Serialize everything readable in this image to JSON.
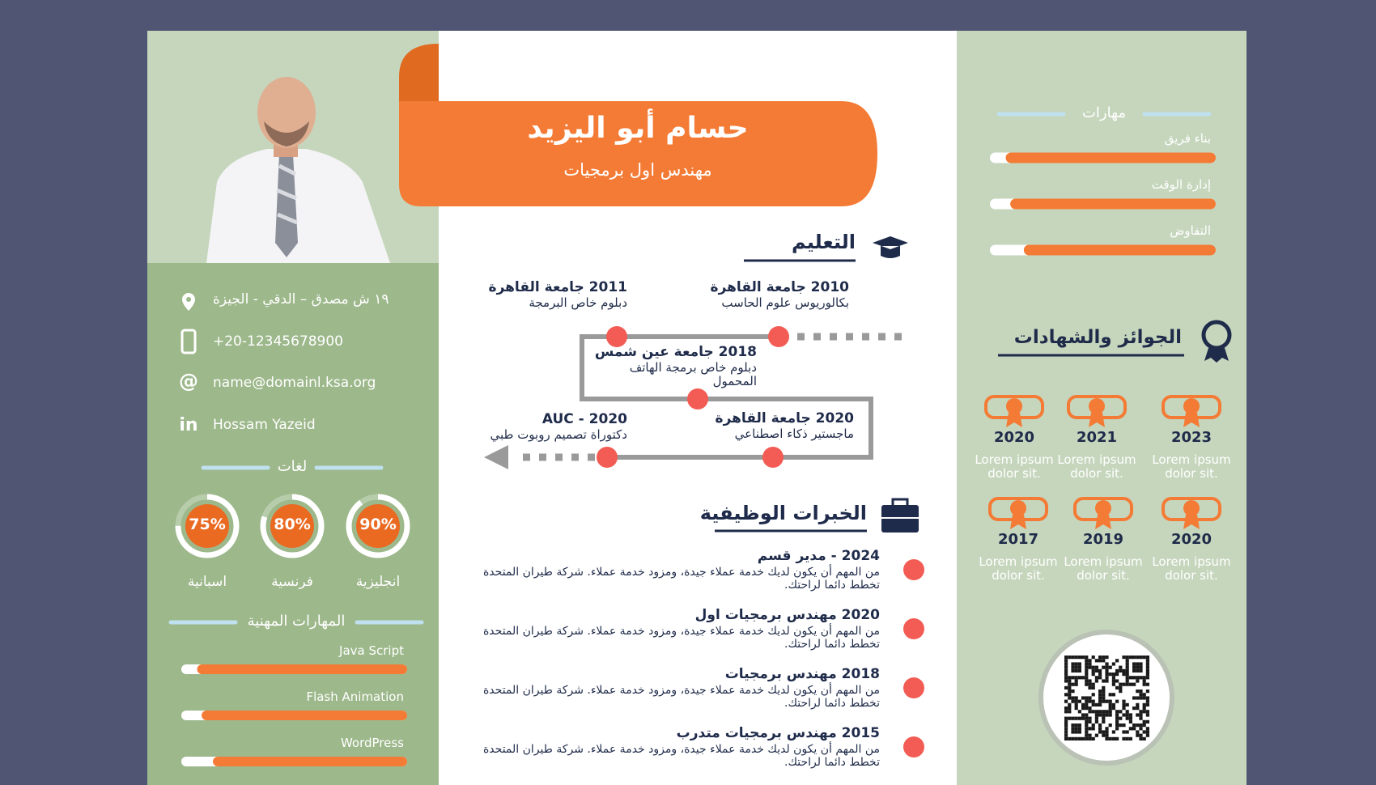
{
  "header": {
    "name": "حسام أبو اليزيد",
    "title": "مهندس اول برمجيات"
  },
  "contact": [
    "١٩ ش مصدق – الدقي - الجيزة",
    "+20-12345678900",
    "name@domainl.ksa.org",
    "Hossam Yazeid"
  ],
  "languages": {
    "heading": "لغات",
    "items": [
      {
        "name": "اسبانية",
        "value": 75,
        "value_label": "75%"
      },
      {
        "name": "فرنسية",
        "value": 80,
        "value_label": "80%"
      },
      {
        "name": "انجليزية",
        "value": 90,
        "value_label": "90%"
      }
    ]
  },
  "professional_skills": {
    "heading": "المهارات المهنية",
    "items": [
      {
        "name": "Java Script",
        "level": 93
      },
      {
        "name": "Flash Animation",
        "level": 91
      },
      {
        "name": "WordPress",
        "level": 86
      }
    ]
  },
  "education": {
    "heading": "التعليم",
    "entries": [
      {
        "title": "2010 جامعة القاهرة",
        "desc": "بكالوريوس علوم الحاسب"
      },
      {
        "title": "2011 جامعة القاهرة",
        "desc": "دبلوم خاص البرمجة"
      },
      {
        "title": "2018 جامعة عين شمس",
        "desc": "دبلوم خاص برمجة الهاتف المحمول"
      },
      {
        "title": "2020 جامعة القاهرة",
        "desc": "ماجستير ذكاء اصطناعي"
      },
      {
        "title": "2020 - AUC",
        "desc": "دكتوراة تصميم روبوت طبي"
      }
    ]
  },
  "experience": {
    "heading": "الخبرات الوظيفية",
    "items": [
      {
        "title": "2024 - مدير قسم",
        "desc": "من المهم أن يكون لديك خدمة عملاء جيدة، ومزود خدمة عملاء. شركة طيران المتحدة تخطط دائما لراحتك."
      },
      {
        "title": "2020 مهندس برمجيات اول",
        "desc": "من المهم أن يكون لديك خدمة عملاء جيدة، ومزود خدمة عملاء. شركة طيران المتحدة تخطط دائما لراحتك."
      },
      {
        "title": "2018 مهندس برمجيات",
        "desc": "من المهم أن يكون لديك خدمة عملاء جيدة، ومزود خدمة عملاء. شركة طيران المتحدة تخطط دائما لراحتك."
      },
      {
        "title": "2015 مهندس برمجيات متدرب",
        "desc": "من المهم أن يكون لديك خدمة عملاء جيدة، ومزود خدمة عملاء. شركة طيران المتحدة تخطط دائما لراحتك."
      }
    ]
  },
  "skills": {
    "heading": "مهارات",
    "items": [
      {
        "name": "بناء فريق",
        "level": 93
      },
      {
        "name": "إدارة الوقت",
        "level": 91
      },
      {
        "name": "التفاوض",
        "level": 85
      }
    ]
  },
  "awards": {
    "heading": "الجوائز والشهادات",
    "items": [
      {
        "year": "2020",
        "text": "Lorem ipsum dolor sit."
      },
      {
        "year": "2021",
        "text": "Lorem ipsum dolor sit."
      },
      {
        "year": "2023",
        "text": "Lorem ipsum dolor sit."
      },
      {
        "year": "2017",
        "text": "Lorem ipsum dolor sit."
      },
      {
        "year": "2019",
        "text": "Lorem ipsum dolor sit."
      },
      {
        "year": "2020",
        "text": "Lorem ipsum dolor sit."
      }
    ]
  }
}
